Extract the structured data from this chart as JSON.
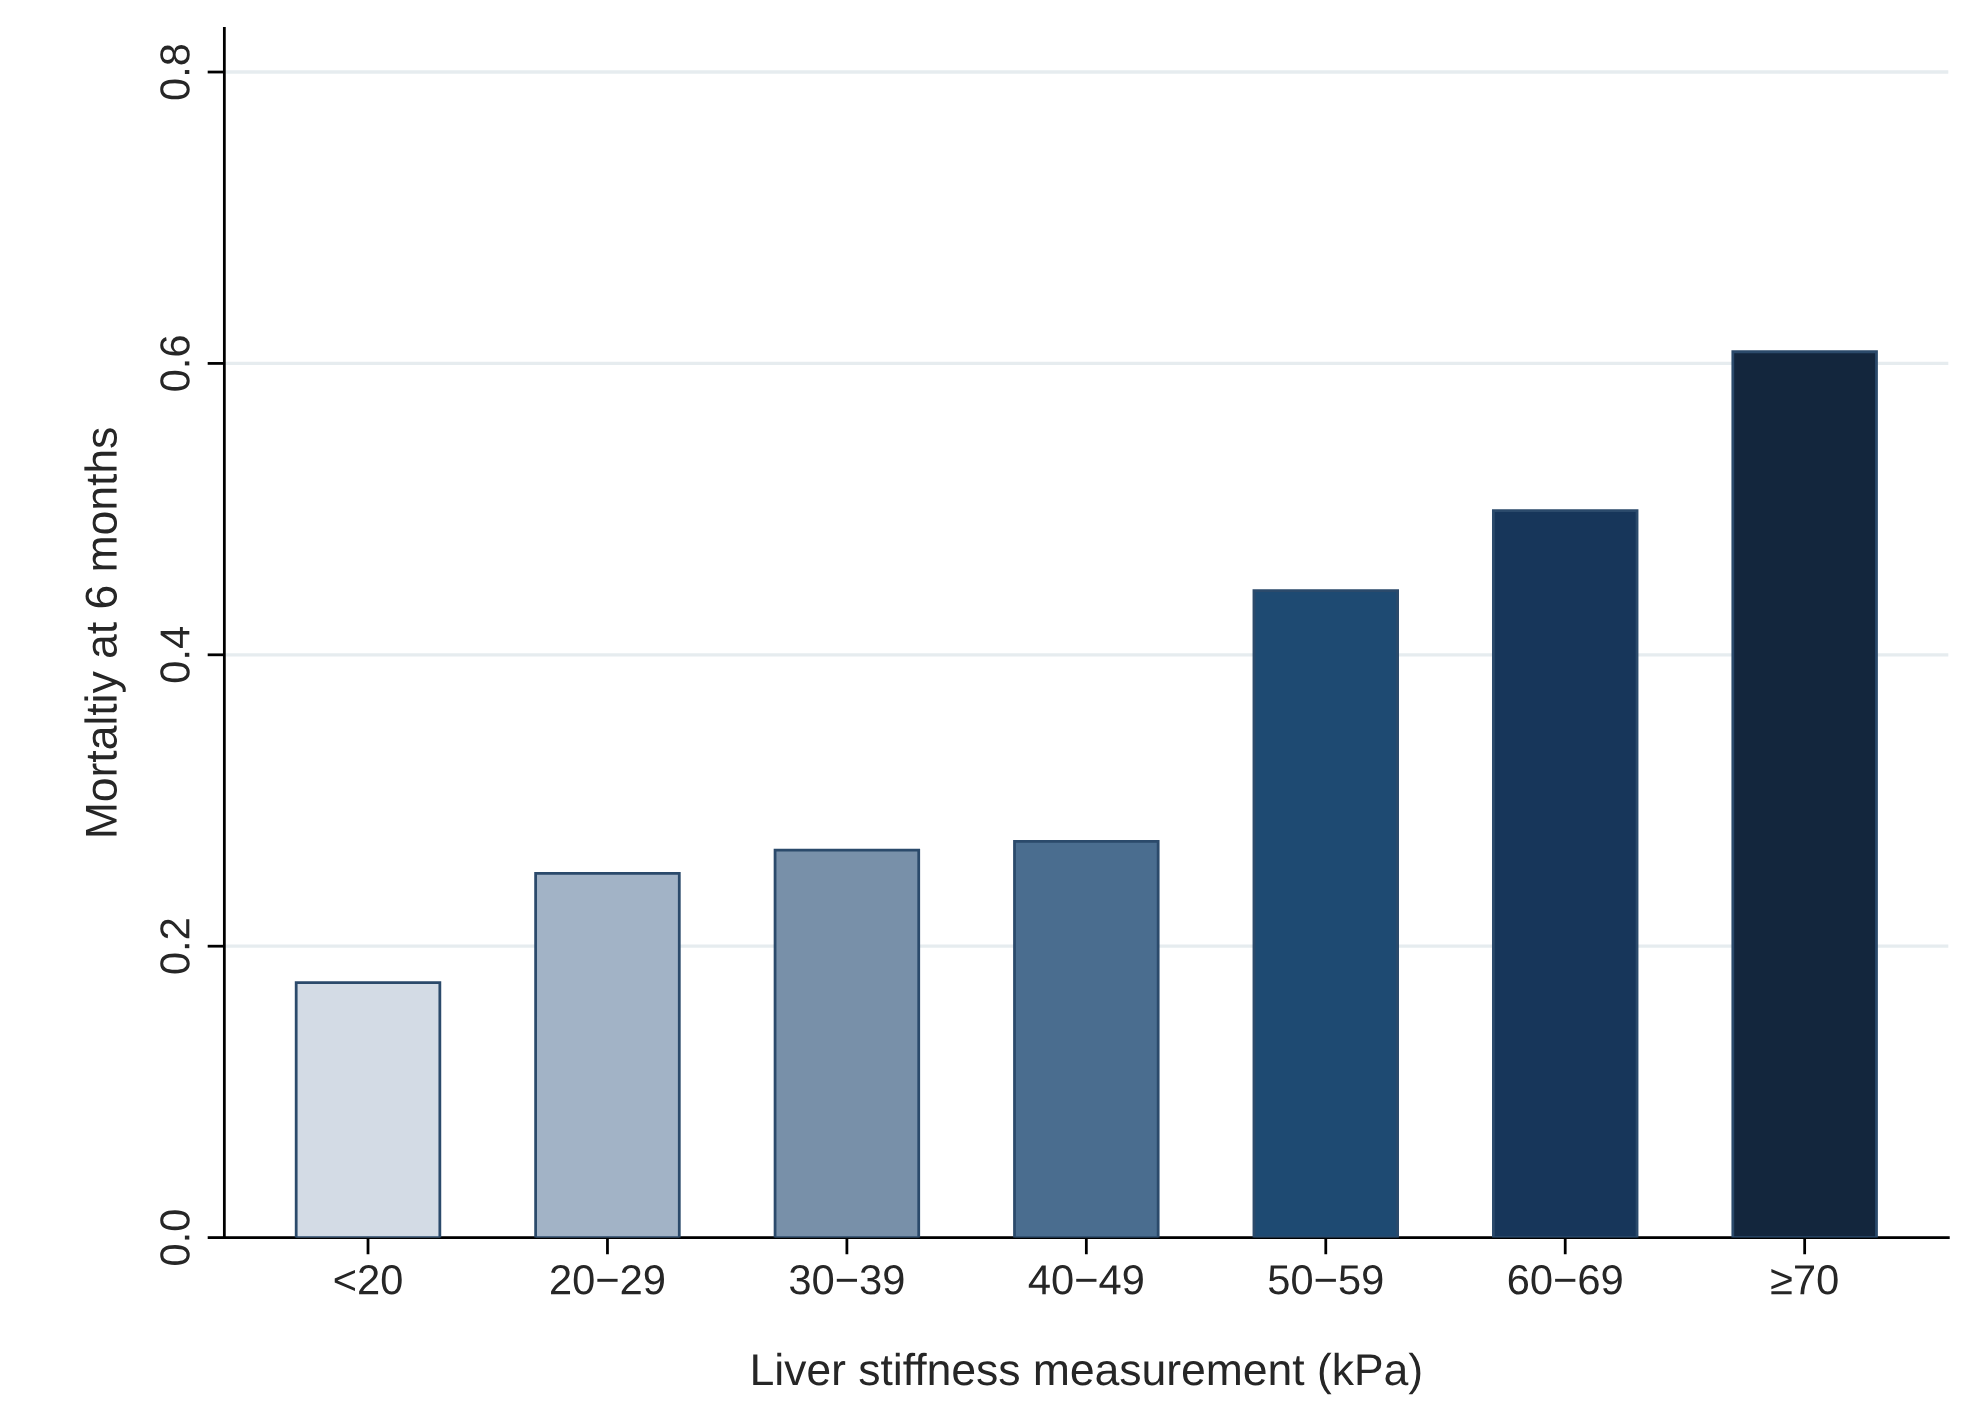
{
  "chart_data": {
    "type": "bar",
    "xlabel": "Liver stiffness measurement (kPa)",
    "ylabel": "Mortaltiy at 6 months",
    "categories": [
      "<20",
      "20−29",
      "30−39",
      "40−49",
      "50−59",
      "60−69",
      "≥70"
    ],
    "values": [
      0.175,
      0.25,
      0.266,
      0.272,
      0.444,
      0.499,
      0.608
    ],
    "colors": [
      "#d3dbe5",
      "#a2b3c6",
      "#7890a9",
      "#4a6d8f",
      "#1e4a72",
      "#17365a",
      "#13263d"
    ],
    "ylim": [
      0,
      0.83
    ],
    "yticks": [
      {
        "value": 0,
        "label": "0.0"
      },
      {
        "value": 0.2,
        "label": "0.2"
      },
      {
        "value": 0.4,
        "label": "0.4"
      },
      {
        "value": 0.6,
        "label": "0.6"
      },
      {
        "value": 0.8,
        "label": "0.8"
      }
    ],
    "grid": "y"
  }
}
